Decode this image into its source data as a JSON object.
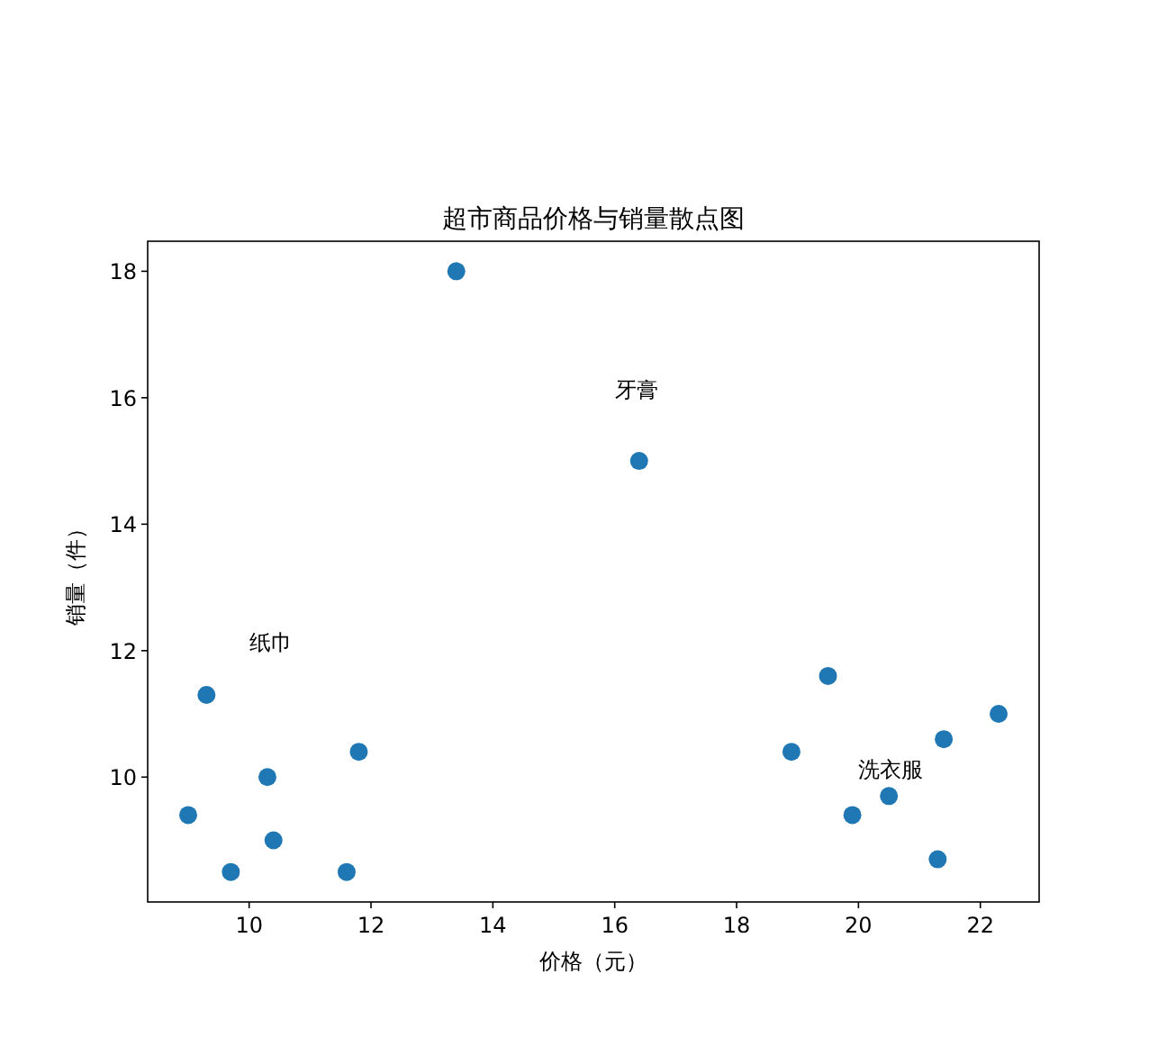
{
  "chart_data": {
    "type": "scatter",
    "title": "超市商品价格与销量散点图",
    "xlabel": "价格（元）",
    "ylabel": "销量（件）",
    "x": [
      9.0,
      9.3,
      9.7,
      10.3,
      10.4,
      11.6,
      11.8,
      13.4,
      16.4,
      18.9,
      19.5,
      19.9,
      20.5,
      21.3,
      21.4,
      22.3
    ],
    "values": [
      9.4,
      11.3,
      8.5,
      10.0,
      9.0,
      8.5,
      10.4,
      18.0,
      15.0,
      10.4,
      11.6,
      9.4,
      9.7,
      8.7,
      10.6,
      11.0
    ],
    "color": "#1f77b4",
    "marker": "circle",
    "xlim": [
      8.335,
      22.965
    ],
    "ylim": [
      8.025,
      18.475
    ],
    "xticks": [
      10,
      12,
      14,
      16,
      18,
      20,
      22
    ],
    "yticks": [
      10,
      12,
      14,
      16,
      18
    ],
    "annotations": [
      "纸巾",
      "牙膏",
      "洗衣服"
    ]
  }
}
